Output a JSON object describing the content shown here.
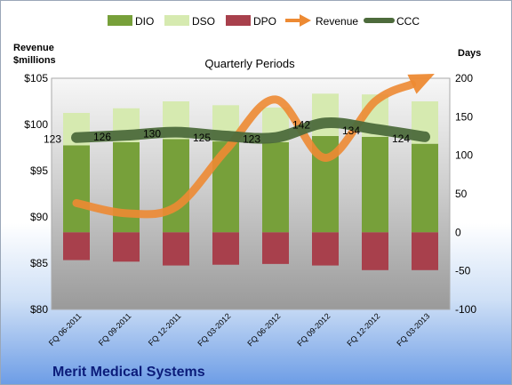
{
  "chart_data": {
    "type": "bar",
    "title": "Quarterly Periods",
    "company": "Merit Medical Systems",
    "left_axis_title_line1": "Revenue",
    "left_axis_title_line2": "$millions",
    "right_axis_title": "Days",
    "categories": [
      "FQ 06-2011",
      "FQ 09-2011",
      "FQ 12-2011",
      "FQ 03-2012",
      "FQ 06-2012",
      "FQ 09-2012",
      "FQ 12-2012",
      "FQ 03-2013"
    ],
    "left_axis": {
      "min": 80,
      "max": 105,
      "ticks": [
        80,
        85,
        90,
        95,
        100,
        105
      ],
      "tick_labels": [
        "$80",
        "$85",
        "$90",
        "$95",
        "$100",
        "$105"
      ]
    },
    "right_axis": {
      "min": -100,
      "max": 200,
      "ticks": [
        -100,
        -50,
        0,
        50,
        100,
        150,
        200
      ],
      "tick_labels": [
        "-100",
        "-50",
        "0",
        "50",
        "100",
        "150",
        "200"
      ]
    },
    "series": [
      {
        "name": "DIO",
        "type": "stacked-bar",
        "axis": "right",
        "color": "#77a03a",
        "values": [
          113,
          117,
          121,
          118,
          117,
          125,
          124,
          115
        ]
      },
      {
        "name": "DSO",
        "type": "stacked-bar",
        "axis": "right",
        "color": "#d6eab0",
        "values": [
          42,
          44,
          49,
          47,
          45,
          55,
          55,
          55
        ]
      },
      {
        "name": "DPO",
        "type": "bar-negative",
        "axis": "right",
        "color": "#a8404c",
        "values": [
          -36,
          -38,
          -43,
          -42,
          -41,
          -43,
          -49,
          -49
        ]
      },
      {
        "name": "Revenue",
        "type": "line-arrow",
        "axis": "left",
        "color": "#ed8a33",
        "values": [
          91.5,
          90.4,
          91.1,
          97.2,
          102.7,
          96.4,
          102.5,
          105
        ]
      },
      {
        "name": "CCC",
        "type": "line",
        "axis": "right",
        "color": "#4d6b3c",
        "values": [
          123,
          126,
          130,
          125,
          123,
          142,
          134,
          124
        ],
        "labels": [
          "123",
          "126",
          "130",
          "125",
          "123",
          "142",
          "134",
          "124"
        ]
      }
    ],
    "legend_position": "top",
    "grid": false
  }
}
